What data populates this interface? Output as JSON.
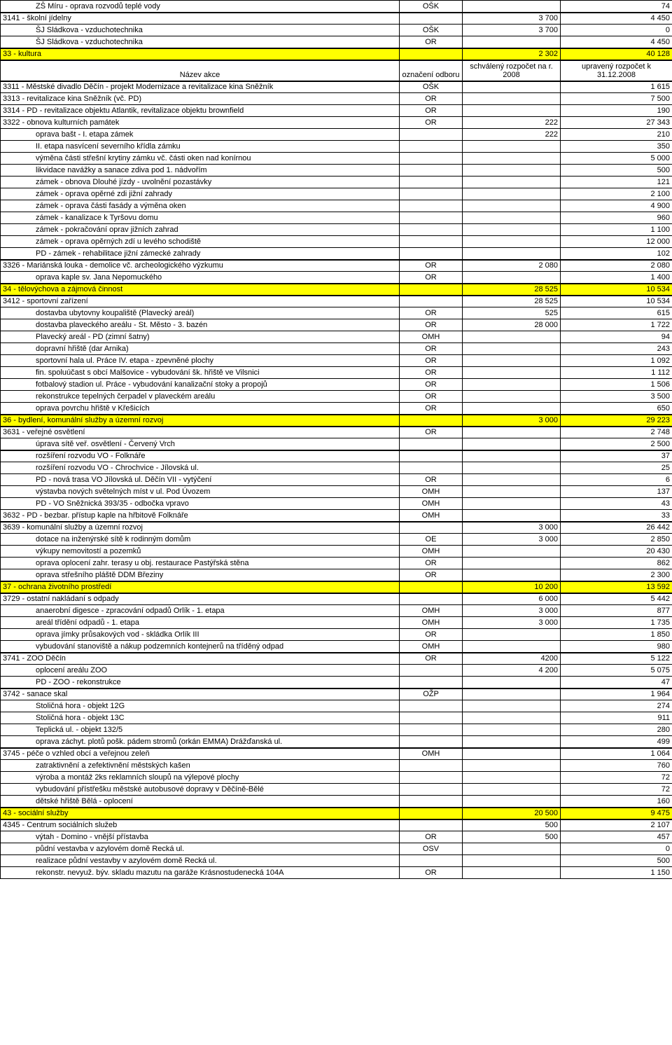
{
  "columns": {
    "name": "Název akce",
    "dept": "označení odboru",
    "a": "schválený rozpočet na r. 2008",
    "b": "upravený rozpočet k 31.12.2008"
  },
  "rows": [
    {
      "name": "ZŠ Míru - oprava rozvodů teplé vody",
      "indent": 2,
      "dept": "OŠK",
      "a": "",
      "b": "74"
    },
    {
      "name": "3141 -  školní jídelny",
      "indent": 0,
      "dept": "",
      "a": "3 700",
      "b": "4 450",
      "thickTop": true
    },
    {
      "name": "ŠJ  Sládkova - vzduchotechnika",
      "indent": 2,
      "dept": "OŠK",
      "a": "3 700",
      "b": "0"
    },
    {
      "name": "ŠJ  Sládkova - vzduchotechnika",
      "indent": 2,
      "dept": "OR",
      "a": "",
      "b": "4 450"
    },
    {
      "name": "33 - kultura",
      "indent": 0,
      "dept": "",
      "a": "2 302",
      "b": "40 128",
      "hl": true,
      "thickTop": true
    },
    {
      "header": true
    },
    {
      "name": "3311 - Městské divadlo Děčín - projekt Modernizace a revitalizace kina Sněžník",
      "indent": 0,
      "dept": "OŠK",
      "a": "",
      "b": "1 615",
      "thickTop": true
    },
    {
      "name": "3313 - revitalizace kina Sněžník (vč. PD)",
      "indent": 0,
      "dept": "OR",
      "a": "",
      "b": "7 500"
    },
    {
      "name": "3314 - PD - revitalizace objektu Atlantik, revitalizace objektu brownfield",
      "indent": 0,
      "dept": "OR",
      "a": "",
      "b": "190"
    },
    {
      "name": "3322 - obnova kulturních památek",
      "indent": 0,
      "dept": "OR",
      "a": "222",
      "b": "27 343"
    },
    {
      "name": "oprava bašt - I. etapa zámek",
      "indent": 2,
      "dept": "",
      "a": "222",
      "b": "210"
    },
    {
      "name": "II. etapa nasvícení severního křídla zámku",
      "indent": 2,
      "dept": "",
      "a": "",
      "b": "350"
    },
    {
      "name": "výměna části střešní krytiny zámku vč. části oken nad konírnou",
      "indent": 2,
      "dept": "",
      "a": "",
      "b": "5 000"
    },
    {
      "name": "likvidace navážky a sanace zdiva pod 1. nádvořím",
      "indent": 2,
      "dept": "",
      "a": "",
      "b": "500"
    },
    {
      "name": "zámek - obnova Dlouhé jízdy - uvolnění pozastávky",
      "indent": 2,
      "dept": "",
      "a": "",
      "b": "121"
    },
    {
      "name": "zámek - oprava opěrné zdi jižní zahrady",
      "indent": 2,
      "dept": "",
      "a": "",
      "b": "2 100"
    },
    {
      "name": "zámek - oprava části fasády a výměna oken",
      "indent": 2,
      "dept": "",
      "a": "",
      "b": "4 900"
    },
    {
      "name": "zámek - kanalizace k Tyršovu domu",
      "indent": 2,
      "dept": "",
      "a": "",
      "b": "960"
    },
    {
      "name": "zámek - pokračování oprav jižních zahrad",
      "indent": 2,
      "dept": "",
      "a": "",
      "b": "1 100"
    },
    {
      "name": "zámek - oprava opěrných zdí u levého schodiště",
      "indent": 2,
      "dept": "",
      "a": "",
      "b": "12 000"
    },
    {
      "name": "PD - zámek - rehabilitace jižní zámecké zahrady",
      "indent": 2,
      "dept": "",
      "a": "",
      "b": "102"
    },
    {
      "name": "3326 - Mariánská louka - demolice vč. archeologického výzkumu",
      "indent": 0,
      "dept": "OR",
      "a": "2 080",
      "b": "2 080",
      "thickTop": true
    },
    {
      "name": "oprava kaple sv. Jana Nepomuckého",
      "indent": 2,
      "dept": "OR",
      "a": "",
      "b": "1 400"
    },
    {
      "name": "34 - tělovýchova a zájmová činnost",
      "indent": 0,
      "dept": "",
      "a": "28 525",
      "b": "10 534",
      "hl": true,
      "thickTop": true
    },
    {
      "name": "3412 - sportovní zařízení",
      "indent": 0,
      "dept": "",
      "a": "28 525",
      "b": "10 534",
      "thickTop": true
    },
    {
      "name": "dostavba ubytovny koupaliště (Plavecký areál)",
      "indent": 2,
      "dept": "OR",
      "a": "525",
      "b": "615"
    },
    {
      "name": "dostavba plaveckého areálu - St. Město - 3. bazén",
      "indent": 2,
      "dept": "OR",
      "a": "28 000",
      "b": "1 722"
    },
    {
      "name": "Plavecký areál - PD (zimní šatny)",
      "indent": 2,
      "dept": "OMH",
      "a": "",
      "b": "94"
    },
    {
      "name": "dopravní hřiště (dar Arnika)",
      "indent": 2,
      "dept": "OR",
      "a": "",
      "b": "243"
    },
    {
      "name": "sportovní hala ul. Práce IV. etapa - zpevněné plochy",
      "indent": 2,
      "dept": "OR",
      "a": "",
      "b": "1 092"
    },
    {
      "name": "fin. spoluúčast s obcí Malšovice - vybudování šk. hřiště ve Vilsnici",
      "indent": 2,
      "dept": "OR",
      "a": "",
      "b": "1 112"
    },
    {
      "name": "fotbalový stadion ul. Práce - vybudování kanalizační stoky a propojů",
      "indent": 2,
      "dept": "OR",
      "a": "",
      "b": "1 506"
    },
    {
      "name": "rekonstrukce tepelných čerpadel v plaveckém areálu",
      "indent": 2,
      "dept": "OR",
      "a": "",
      "b": "3 500"
    },
    {
      "name": "oprava povrchu hřiště v Křešicích",
      "indent": 2,
      "dept": "OR",
      "a": "",
      "b": "650"
    },
    {
      "name": "36 - bydlení, komunální služby a územní rozvoj",
      "indent": 0,
      "dept": "",
      "a": "3 000",
      "b": "29 223",
      "hl": true,
      "thickTop": true
    },
    {
      "name": "3631 - veřejné osvětlení",
      "indent": 0,
      "dept": "OR",
      "a": "",
      "b": "2 748",
      "thickTop": true
    },
    {
      "name": "úprava sítě veř. osvětlení - Červený Vrch",
      "indent": 2,
      "dept": "",
      "a": "",
      "b": "2 500"
    },
    {
      "name": "rozšíření rozvodu VO - Folknáře",
      "indent": 2,
      "dept": "",
      "a": "",
      "b": "37",
      "thickTop": true
    },
    {
      "name": "rozšíření rozvodu VO - Chrochvice - Jílovská ul.",
      "indent": 2,
      "dept": "",
      "a": "",
      "b": "25"
    },
    {
      "name": "PD - nová trasa VO Jílovská ul. Děčín VII - vytýčení",
      "indent": 2,
      "dept": "OR",
      "a": "",
      "b": "6"
    },
    {
      "name": "výstavba nových světelných míst v ul. Pod Úvozem",
      "indent": 2,
      "dept": "OMH",
      "a": "",
      "b": "137"
    },
    {
      "name": "PD - VO Sněžnická 393/35 - odbočka vpravo",
      "indent": 2,
      "dept": "OMH",
      "a": "",
      "b": "43"
    },
    {
      "name": "3632 - PD - bezbar. přístup kaple na hřbitově Folknáře",
      "indent": 0,
      "dept": "OMH",
      "a": "",
      "b": "33"
    },
    {
      "name": "3639 - komunální služby a územní rozvoj",
      "indent": 0,
      "dept": "",
      "a": "3 000",
      "b": "26 442",
      "thickTop": true
    },
    {
      "name": "dotace na inženýrské sítě k rodinným domům",
      "indent": 2,
      "dept": "OE",
      "a": "3 000",
      "b": "2 850"
    },
    {
      "name": "výkupy nemovitostí a pozemků",
      "indent": 2,
      "dept": "OMH",
      "a": "",
      "b": "20 430"
    },
    {
      "name": "oprava oplocení zahr. terasy u obj. restaurace Pastýřská stěna",
      "indent": 2,
      "dept": "OR",
      "a": "",
      "b": "862"
    },
    {
      "name": "oprava střešního pláště DDM Březiny",
      "indent": 2,
      "dept": "OR",
      "a": "",
      "b": "2 300"
    },
    {
      "name": "37 - ochrana životního prostředí",
      "indent": 0,
      "dept": "",
      "a": "10 200",
      "b": "13 592",
      "hl": true,
      "thickTop": true
    },
    {
      "name": "3729 - ostatní nakládaní s odpady",
      "indent": 0,
      "dept": "",
      "a": "6 000",
      "b": "5 442",
      "thickTop": true
    },
    {
      "name": "anaerobní digesce - zpracování odpadů Orlík - 1. etapa",
      "indent": 2,
      "dept": "OMH",
      "a": "3 000",
      "b": "877"
    },
    {
      "name": "areál třídění odpadů - 1. etapa",
      "indent": 2,
      "dept": "OMH",
      "a": "3 000",
      "b": "1 735"
    },
    {
      "name": "oprava jímky průsakových vod - skládka Orlík III",
      "indent": 2,
      "dept": "OR",
      "a": "",
      "b": "1 850"
    },
    {
      "name": "vybudování stanoviště a nákup podzemních kontejnerů na tříděný odpad",
      "indent": 2,
      "dept": "OMH",
      "a": "",
      "b": "980"
    },
    {
      "name": "3741  - ZOO Děčín",
      "indent": 0,
      "dept": "OR",
      "a": "4200",
      "b": "5 122",
      "thickTop": true
    },
    {
      "name": "oplocení areálu ZOO",
      "indent": 2,
      "dept": "",
      "a": "4 200",
      "b": "5 075"
    },
    {
      "name": "PD - ZOO - rekonstrukce",
      "indent": 2,
      "dept": "",
      "a": "",
      "b": "47"
    },
    {
      "name": "3742 - sanace skal",
      "indent": 0,
      "dept": "OŽP",
      "a": "",
      "b": "1 964",
      "thickTop": true
    },
    {
      "name": "Stoličná hora - objekt 12G",
      "indent": 2,
      "dept": "",
      "a": "",
      "b": "274"
    },
    {
      "name": "Stoličná hora - objekt 13C",
      "indent": 2,
      "dept": "",
      "a": "",
      "b": "911"
    },
    {
      "name": "Teplická ul. - objekt 132/5",
      "indent": 2,
      "dept": "",
      "a": "",
      "b": "280"
    },
    {
      "name": "oprava záchyt. plotů pošk. pádem stromů (orkán EMMA) Drážďanská ul.",
      "indent": 2,
      "dept": "",
      "a": "",
      "b": "499"
    },
    {
      "name": "3745 - péče o vzhled obcí a veřejnou  zeleň",
      "indent": 0,
      "dept": "OMH",
      "a": "",
      "b": "1 064",
      "thickTop": true
    },
    {
      "name": "zatraktivnění a zefektivnění městských kašen",
      "indent": 2,
      "dept": "",
      "a": "",
      "b": "760"
    },
    {
      "name": "výroba a montáž 2ks reklamních sloupů na výlepové plochy",
      "indent": 2,
      "dept": "",
      "a": "",
      "b": "72"
    },
    {
      "name": "vybudování přístřešku městské autobusové dopravy v Děčíně-Bělé",
      "indent": 2,
      "dept": "",
      "a": "",
      "b": "72"
    },
    {
      "name": "dětské hřiště Bělá - oplocení",
      "indent": 2,
      "dept": "",
      "a": "",
      "b": "160"
    },
    {
      "name": "43 - sociální služby",
      "indent": 0,
      "dept": "",
      "a": "20 500",
      "b": "9 475",
      "hl": true,
      "thickTop": true
    },
    {
      "name": "4345 - Centrum sociálních služeb",
      "indent": 0,
      "dept": "",
      "a": "500",
      "b": "2 107",
      "thickTop": true
    },
    {
      "name": "výtah - Domino - vnější přístavba",
      "indent": 2,
      "dept": "OR",
      "a": "500",
      "b": "457"
    },
    {
      "name": "půdní vestavba v azylovém domě Recká ul.",
      "indent": 2,
      "dept": "OSV",
      "a": "",
      "b": "0"
    },
    {
      "name": "realizace půdní vestavby v azylovém domě Recká ul.",
      "indent": 2,
      "dept": "",
      "a": "",
      "b": "500"
    },
    {
      "name": "rekonstr. nevyuž. býv. skladu mazutu na garáže Krásnostudenecká 104A",
      "indent": 2,
      "dept": "OR",
      "a": "",
      "b": "1 150"
    }
  ]
}
